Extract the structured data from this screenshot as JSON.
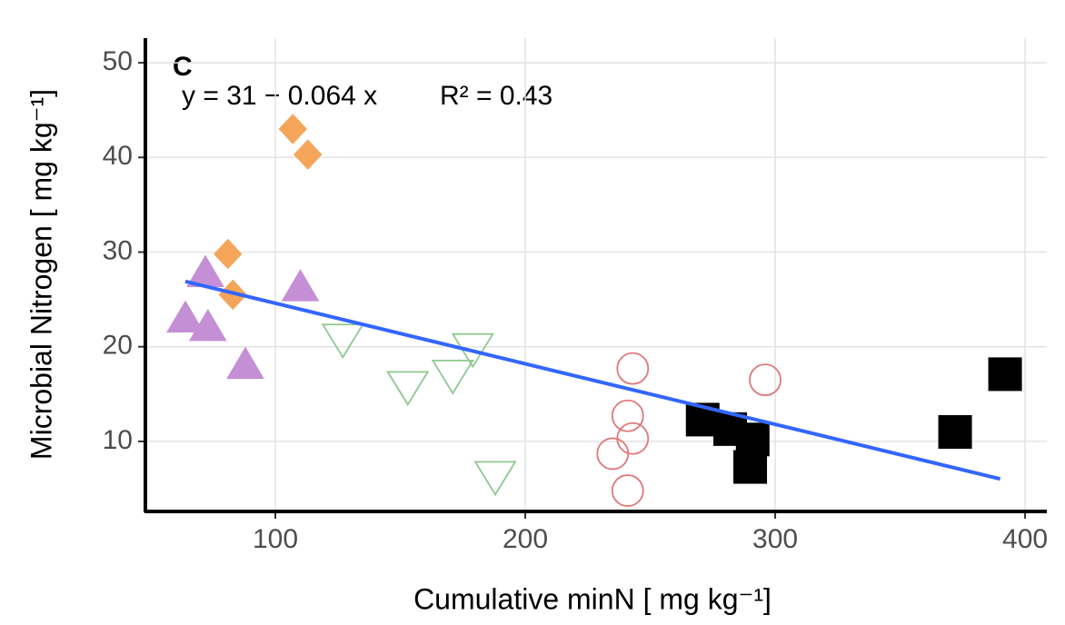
{
  "chart_data": {
    "type": "scatter",
    "annotation": "C",
    "equation": "y = 31 − 0.064 x",
    "r_squared": "R² = 0.43",
    "x_label": "Cumulative minN [ mg kg⁻¹]",
    "y_label": "Microbial Nitrogen [ mg kg⁻¹]",
    "xlim": [
      48,
      408.7
    ],
    "ylim": [
      2.6,
      52.6
    ],
    "xticks": [
      100,
      200,
      300,
      400
    ],
    "yticks": [
      10,
      20,
      30,
      40,
      50
    ],
    "grid": true,
    "series": [
      {
        "marker": "diamond",
        "color": "#f5a55a",
        "filled": true,
        "x": [
          107,
          113,
          81,
          83
        ],
        "values": [
          43,
          40.3,
          29.8,
          25.5
        ]
      },
      {
        "marker": "triangle-up",
        "color": "#c58fd6",
        "filled": true,
        "x": [
          72,
          64,
          73,
          110,
          88
        ],
        "values": [
          27.5,
          22.7,
          21.8,
          26,
          17.8
        ]
      },
      {
        "marker": "triangle-down",
        "color": "#8fc98f",
        "filled": false,
        "x": [
          127,
          179,
          153,
          171,
          188
        ],
        "values": [
          21,
          20,
          16,
          17.2,
          6.5
        ]
      },
      {
        "marker": "circle",
        "color": "#e0777a",
        "filled": false,
        "x": [
          243,
          241,
          235,
          243,
          241,
          296
        ],
        "values": [
          17.7,
          12.7,
          8.7,
          10.3,
          4.8,
          16.5
        ]
      },
      {
        "marker": "square",
        "color": "#000000",
        "filled": true,
        "x": [
          271,
          282,
          291,
          290,
          372,
          392
        ],
        "values": [
          12.3,
          11.3,
          10.2,
          7.3,
          11,
          17.1
        ]
      }
    ],
    "fit": {
      "color": "#3366ff",
      "x": [
        64,
        390
      ],
      "values": [
        26.9,
        6.04
      ]
    }
  }
}
